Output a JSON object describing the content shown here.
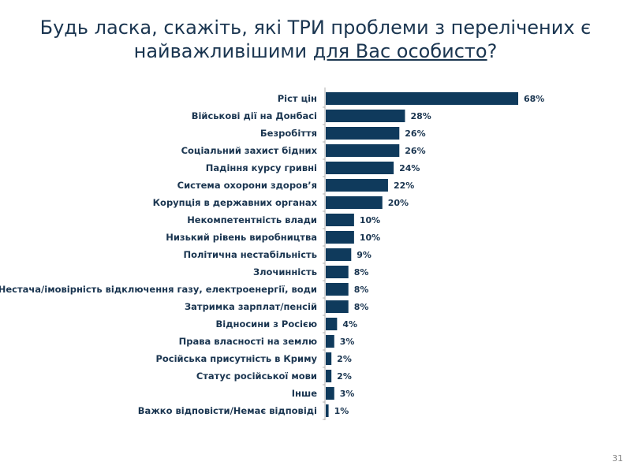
{
  "title": {
    "line1": "Будь ласка, скажіть, які ТРИ проблеми з перелічених є",
    "line2_prefix": "найважливішими ",
    "line2_underlined": "для Вас особисто",
    "line2_suffix": "?"
  },
  "page_number": "31",
  "chart_data": {
    "type": "bar",
    "orientation": "horizontal",
    "bar_color": "#0f3a5c",
    "label_color": "#1a3550",
    "value_suffix": "%",
    "xlim": [
      0,
      68
    ],
    "grid": false,
    "categories": [
      "Ріст цін",
      "Військові дії на Донбасі",
      "Безробіття",
      "Соціальний захист бідних",
      "Падіння курсу гривні",
      "Система охорони здоров’я",
      "Корупція в державних органах",
      "Некомпетентність влади",
      "Низький рівень виробництва",
      "Політична нестабільність",
      "Злочинність",
      "Нестача/імовірність відключення газу, електроенергії, води",
      "Затримка зарплат/пенсій",
      "Відносини з Росією",
      "Права власності на землю",
      "Російська присутність в Криму",
      "Статус російської мови",
      "Інше",
      "Важко відповісти/Немає відповіді"
    ],
    "values": [
      68,
      28,
      26,
      26,
      24,
      22,
      20,
      10,
      10,
      9,
      8,
      8,
      8,
      4,
      3,
      2,
      2,
      3,
      1
    ],
    "data_labels": [
      "68%",
      "28%",
      "26%",
      "26%",
      "24%",
      "22%",
      "20%",
      "10%",
      "10%",
      "9%",
      "8%",
      "8%",
      "8%",
      "4%",
      "3%",
      "2%",
      "2%",
      "3%",
      "1%"
    ]
  }
}
